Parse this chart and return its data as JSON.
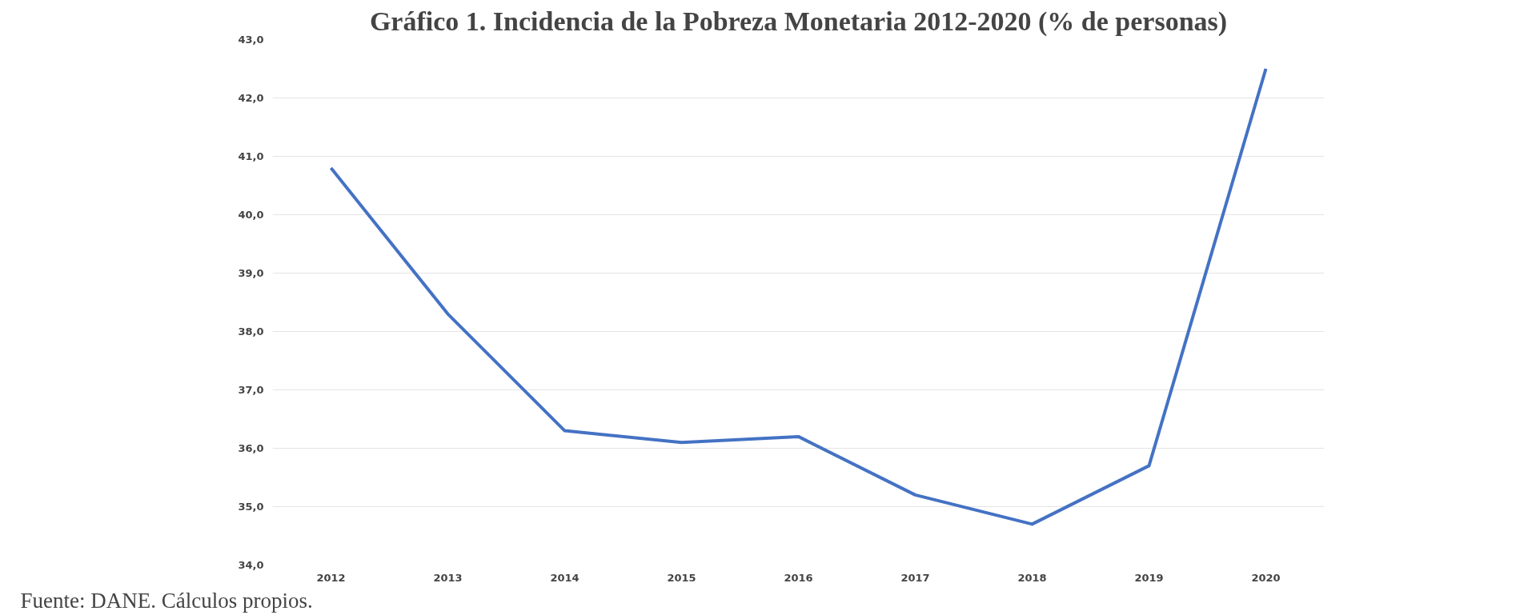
{
  "chart_data": {
    "type": "line",
    "title": "Gráfico 1. Incidencia de la Pobreza Monetaria 2012-2020 (% de personas)",
    "categories": [
      "2012",
      "2013",
      "2014",
      "2015",
      "2016",
      "2017",
      "2018",
      "2019",
      "2020"
    ],
    "series": [
      {
        "color": "#4472c4",
        "values": [
          40.8,
          38.3,
          36.3,
          36.1,
          36.2,
          35.2,
          34.7,
          35.7,
          42.5
        ]
      }
    ],
    "ylim": [
      34,
      43
    ],
    "yticks": [
      {
        "value": 34,
        "label": "34,0"
      },
      {
        "value": 35,
        "label": "35,0"
      },
      {
        "value": 36,
        "label": "36,0"
      },
      {
        "value": 37,
        "label": "37,0"
      },
      {
        "value": 38,
        "label": "38,0"
      },
      {
        "value": 39,
        "label": "39,0"
      },
      {
        "value": 40,
        "label": "40,0"
      },
      {
        "value": 41,
        "label": "41,0"
      },
      {
        "value": 42,
        "label": "42,0"
      },
      {
        "value": 43,
        "label": "43,0"
      }
    ],
    "grid": "y",
    "marker": "none",
    "line_style": "solid",
    "annotations": [
      "Fuente: DANE. Cálculos propios."
    ]
  }
}
